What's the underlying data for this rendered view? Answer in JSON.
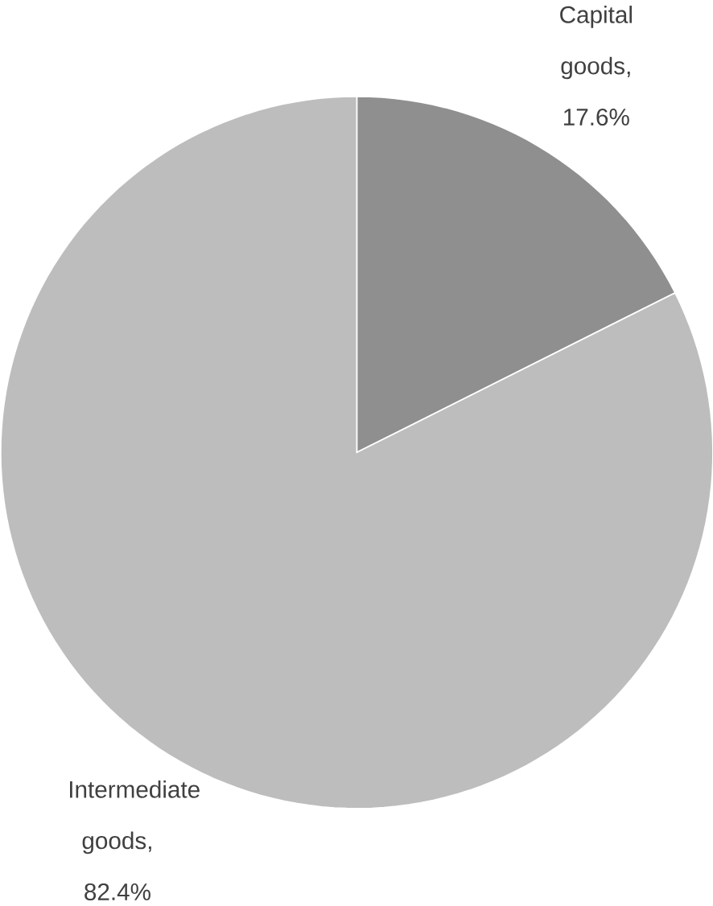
{
  "chart_data": {
    "type": "pie",
    "categories": [
      "Capital goods",
      "Intermediate goods"
    ],
    "values": [
      17.6,
      82.4
    ],
    "colors": [
      "#8f8f8f",
      "#bdbdbd"
    ],
    "value_labels": [
      ", 17.6%",
      ", 82.4%"
    ]
  }
}
